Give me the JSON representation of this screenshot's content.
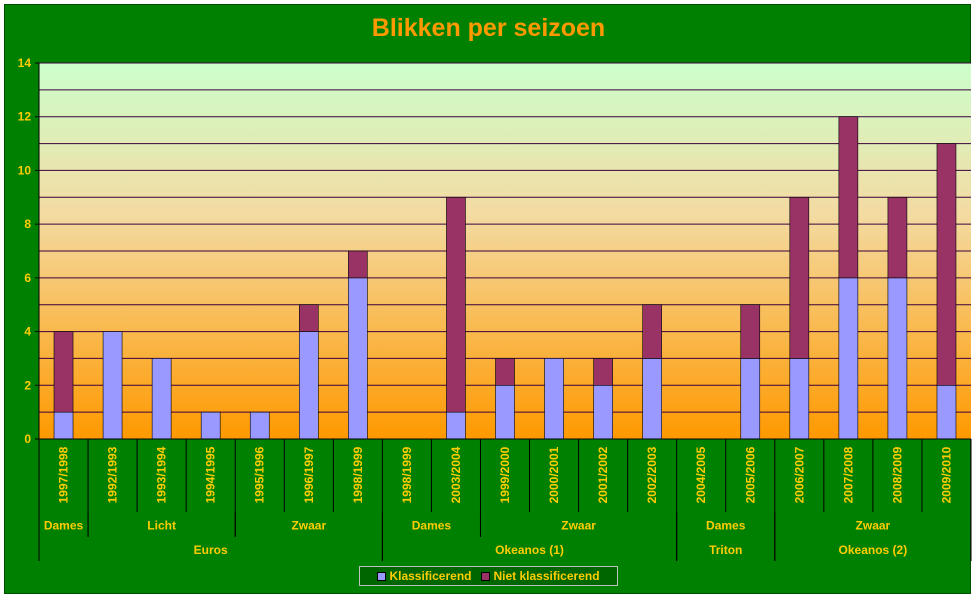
{
  "colors": {
    "frame": "#008000",
    "text": "#ffcc00",
    "title": "#ff9900",
    "klassificerend": "#9999ff",
    "niet_klassificerend": "#993366",
    "gridline": "#3a003a"
  },
  "legend": {
    "items": [
      {
        "label": "Klassificerend",
        "color": "#9999ff"
      },
      {
        "label": "Niet klassificerend",
        "color": "#993366"
      }
    ]
  },
  "chart_data": {
    "type": "bar",
    "stacked": true,
    "title": "Blikken per seizoen",
    "xlabel": "",
    "ylabel": "",
    "ylim": [
      0,
      14
    ],
    "yticks": [
      0,
      2,
      4,
      6,
      8,
      10,
      12,
      14
    ],
    "grid": true,
    "legend_position": "bottom",
    "categories": [
      "1997/1998",
      "1992/1993",
      "1993/1994",
      "1994/1995",
      "1995/1996",
      "1996/1997",
      "1998/1999",
      "1998/1999",
      "2003/2004",
      "1999/2000",
      "2000/2001",
      "2001/2002",
      "2002/2003",
      "2004/2005",
      "2005/2006",
      "2006/2007",
      "2007/2008",
      "2008/2009",
      "2009/2010"
    ],
    "series": [
      {
        "name": "Klassificerend",
        "values": [
          1,
          4,
          3,
          1,
          1,
          4,
          6,
          0,
          1,
          2,
          3,
          2,
          3,
          0,
          3,
          3,
          6,
          6,
          2
        ]
      },
      {
        "name": "Niet klassificerend",
        "values": [
          3,
          0,
          0,
          0,
          0,
          1,
          1,
          0,
          8,
          1,
          0,
          1,
          2,
          0,
          2,
          6,
          6,
          3,
          9
        ]
      }
    ],
    "group_level1": [
      {
        "label": "Dames",
        "start": 0,
        "end": 0
      },
      {
        "label": "Licht",
        "start": 1,
        "end": 3
      },
      {
        "label": "Zwaar",
        "start": 4,
        "end": 6
      },
      {
        "label": "Dames",
        "start": 7,
        "end": 8
      },
      {
        "label": "Zwaar",
        "start": 9,
        "end": 12
      },
      {
        "label": "Dames",
        "start": 13,
        "end": 14
      },
      {
        "label": "Zwaar",
        "start": 15,
        "end": 18
      }
    ],
    "group_level2": [
      {
        "label": "Euros",
        "start": 0,
        "end": 6
      },
      {
        "label": "Okeanos (1)",
        "start": 7,
        "end": 12
      },
      {
        "label": "Triton",
        "start": 13,
        "end": 14
      },
      {
        "label": "Okeanos (2)",
        "start": 15,
        "end": 18
      }
    ]
  }
}
